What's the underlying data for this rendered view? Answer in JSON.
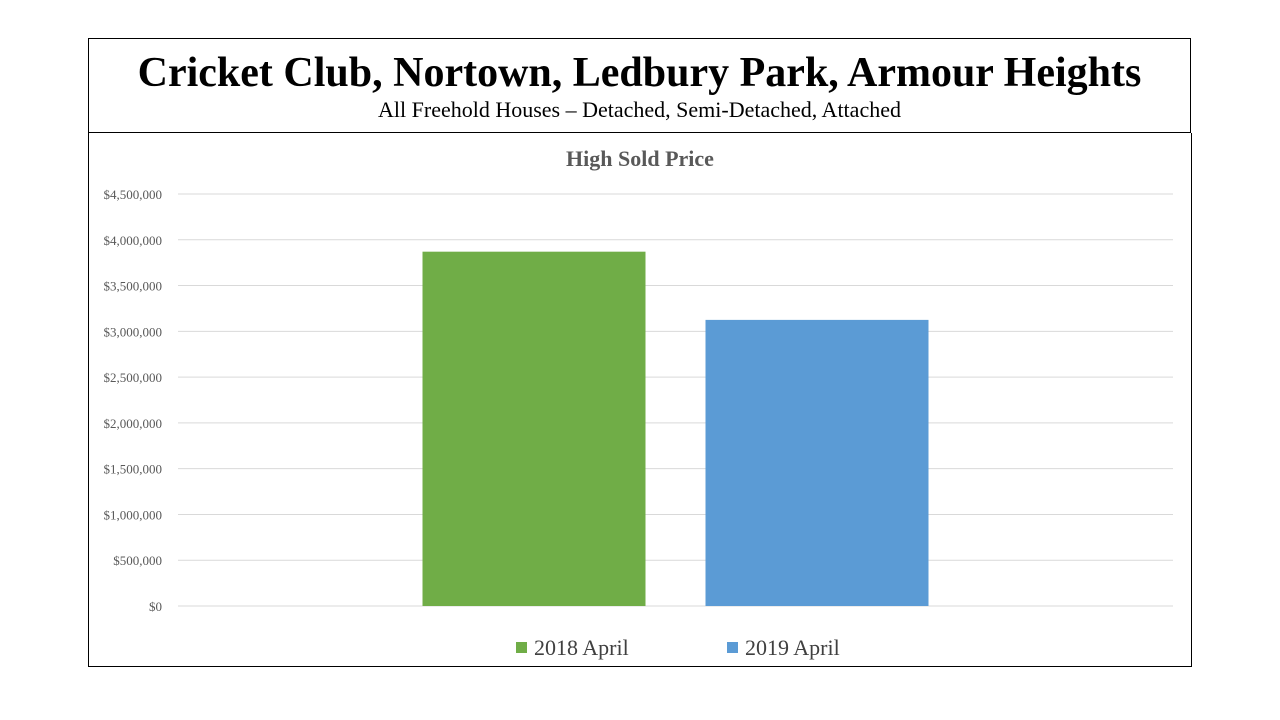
{
  "header": {
    "title": "Cricket Club, Nortown, Ledbury Park, Armour Heights",
    "subtitle": "All Freehold Houses – Detached, Semi-Detached, Attached"
  },
  "chart_data": {
    "type": "bar",
    "title": "High Sold Price",
    "xlabel": "",
    "ylabel": "",
    "ylim": [
      0,
      4500000
    ],
    "ytick_step": 500000,
    "grid": true,
    "legend_position": "bottom",
    "yticks": [
      "$0",
      "$500,000",
      "$1,000,000",
      "$1,500,000",
      "$2,000,000",
      "$2,500,000",
      "$3,000,000",
      "$3,500,000",
      "$4,000,000",
      "$4,500,000"
    ],
    "series": [
      {
        "name": "2018 April",
        "value": 3870000,
        "color": "#70ad47"
      },
      {
        "name": "2019 April",
        "value": 3125000,
        "color": "#5b9bd5"
      }
    ]
  }
}
